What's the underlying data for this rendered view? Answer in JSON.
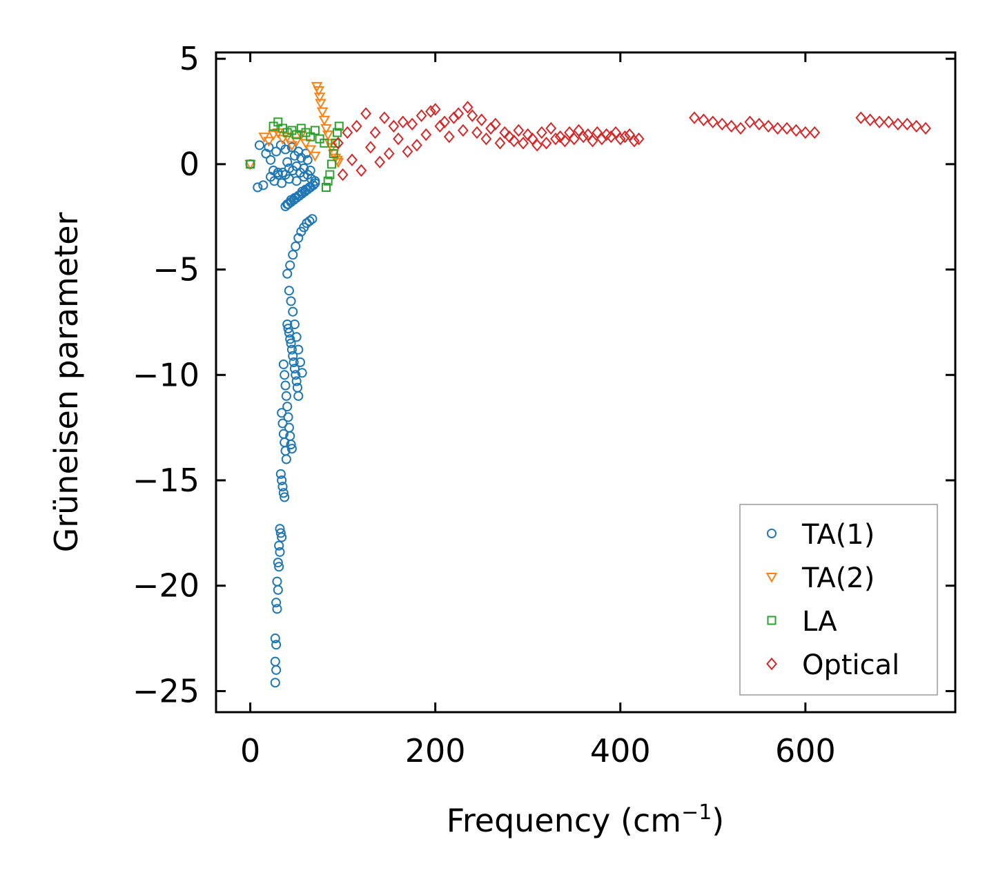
{
  "chart_data": {
    "type": "scatter",
    "title": "",
    "xlabel": "Frequency (cm",
    "xlabel_sup": "−1",
    "xlabel_close": ")",
    "ylabel": "Grüneisen parameter",
    "xlim": [
      -37,
      762
    ],
    "ylim": [
      -26,
      5.3
    ],
    "xticks": [
      0,
      200,
      400,
      600
    ],
    "xtick_labels": [
      "0",
      "200",
      "400",
      "600"
    ],
    "yticks": [
      5,
      0,
      -5,
      -10,
      -15,
      -20,
      -25
    ],
    "ytick_labels": [
      "5",
      "0",
      "−5",
      "−10",
      "−15",
      "−20",
      "−25"
    ],
    "grid": false,
    "legend_position": "lower-right",
    "series": [
      {
        "name": "TA(1)",
        "marker": "circle",
        "color": "#1f77b4",
        "x": [
          0,
          8,
          14,
          17,
          20,
          10,
          22,
          25,
          28,
          30,
          33,
          35,
          38,
          40,
          42,
          45,
          48,
          50,
          52,
          55,
          58,
          60,
          62,
          65,
          22,
          26,
          30,
          34,
          38,
          42,
          46,
          50,
          54,
          58,
          62,
          66,
          70,
          40,
          44,
          48,
          52,
          56,
          60,
          64,
          68,
          38,
          41,
          44,
          47,
          50,
          53,
          56,
          59,
          62,
          65,
          68,
          70,
          40,
          43,
          46,
          49,
          52,
          55,
          58,
          61,
          64,
          67,
          42,
          44,
          46,
          48,
          50,
          52,
          54,
          56,
          40,
          41,
          42,
          43,
          44,
          45,
          46,
          47,
          48,
          49,
          50,
          51,
          52,
          36,
          37,
          38,
          39,
          40,
          41,
          42,
          43,
          44,
          45,
          34,
          35,
          36,
          37,
          38,
          39,
          33,
          34,
          35,
          36,
          37,
          32,
          33,
          34,
          31,
          32,
          30,
          31,
          29,
          30,
          28,
          29,
          27,
          28
        ],
        "y": [
          0,
          -1.1,
          -1.0,
          0.5,
          0.8,
          0.9,
          0.2,
          -0.3,
          0.6,
          -0.5,
          0.9,
          -0.4,
          0.7,
          0.1,
          -0.2,
          0.8,
          0.4,
          -0.1,
          0.6,
          0.3,
          -0.2,
          0.5,
          0.2,
          -0.3,
          -0.6,
          -0.8,
          -0.4,
          -0.9,
          -0.5,
          -0.7,
          -0.3,
          -0.8,
          -0.4,
          -0.6,
          -0.5,
          -0.7,
          -0.8,
          -1.9,
          -1.7,
          -1.6,
          -1.5,
          -1.3,
          -1.2,
          -1.1,
          -1.0,
          -2.0,
          -1.9,
          -1.8,
          -1.7,
          -1.6,
          -1.5,
          -1.4,
          -1.3,
          -1.2,
          -1.1,
          -1.0,
          -0.9,
          -5.2,
          -4.8,
          -4.3,
          -3.9,
          -3.5,
          -3.2,
          -3.0,
          -2.8,
          -2.7,
          -2.6,
          -6.0,
          -6.5,
          -7.0,
          -7.6,
          -8.2,
          -8.8,
          -9.4,
          -9.9,
          -7.6,
          -7.8,
          -8.0,
          -8.3,
          -8.5,
          -8.8,
          -9.1,
          -9.4,
          -9.7,
          -10.0,
          -10.3,
          -10.6,
          -11.0,
          -9.5,
          -10.0,
          -10.5,
          -11.0,
          -11.5,
          -12.0,
          -12.5,
          -12.9,
          -13.3,
          -13.5,
          -11.8,
          -12.3,
          -12.8,
          -13.2,
          -13.6,
          -14.0,
          -14.7,
          -15.0,
          -15.3,
          -15.6,
          -15.8,
          -17.3,
          -17.5,
          -17.7,
          -18.1,
          -18.4,
          -18.9,
          -19.1,
          -19.8,
          -20.2,
          -20.8,
          -21.1,
          -22.5,
          -22.8
        ],
        "tail_x": [
          27,
          28,
          27
        ],
        "tail_y": [
          -23.6,
          -24.0,
          -24.6
        ]
      },
      {
        "name": "TA(2)",
        "marker": "triangle-down",
        "color": "#ff7f0e",
        "x": [
          0,
          15,
          20,
          25,
          30,
          35,
          40,
          45,
          50,
          55,
          60,
          65,
          70,
          72,
          74,
          75,
          76,
          78,
          80,
          82,
          84,
          86,
          88,
          90,
          92,
          94,
          95
        ],
        "y": [
          0,
          1.3,
          1.1,
          1.4,
          1.5,
          1.2,
          1.3,
          0.9,
          1.1,
          1.4,
          1.0,
          0.7,
          0.4,
          3.7,
          3.5,
          3.2,
          2.9,
          2.5,
          2.1,
          1.7,
          1.4,
          1.0,
          0.8,
          0.5,
          0.3,
          0.2,
          0.1
        ]
      },
      {
        "name": "LA",
        "marker": "square",
        "color": "#2ca02c",
        "x": [
          0,
          25,
          30,
          35,
          40,
          45,
          50,
          55,
          60,
          65,
          70,
          75,
          80,
          82,
          84,
          86,
          88,
          90,
          92,
          94,
          96
        ],
        "y": [
          0,
          1.8,
          2.0,
          1.7,
          1.5,
          1.6,
          1.4,
          1.7,
          1.5,
          1.3,
          1.6,
          1.2,
          1.0,
          -1.1,
          -0.8,
          -0.5,
          0.0,
          0.5,
          1.0,
          1.5,
          1.8
        ]
      },
      {
        "name": "Optical",
        "marker": "diamond",
        "color": "#d62728",
        "x": [
          95,
          100,
          105,
          110,
          115,
          120,
          125,
          130,
          135,
          140,
          145,
          150,
          155,
          160,
          165,
          170,
          175,
          180,
          185,
          190,
          195,
          200,
          205,
          210,
          215,
          220,
          225,
          230,
          235,
          240,
          245,
          250,
          255,
          260,
          265,
          270,
          275,
          280,
          285,
          290,
          295,
          300,
          305,
          310,
          315,
          320,
          325,
          330,
          335,
          340,
          345,
          350,
          355,
          360,
          365,
          370,
          375,
          380,
          385,
          390,
          395,
          400,
          405,
          410,
          415,
          420,
          480,
          490,
          500,
          510,
          520,
          530,
          540,
          550,
          560,
          570,
          580,
          590,
          600,
          610,
          660,
          670,
          680,
          690,
          700,
          710,
          720,
          730
        ],
        "y": [
          1.0,
          -0.5,
          1.5,
          0.2,
          1.8,
          -0.3,
          2.4,
          0.8,
          1.5,
          0.1,
          2.2,
          0.5,
          1.8,
          1.2,
          2.0,
          0.6,
          1.9,
          0.9,
          2.3,
          1.4,
          2.5,
          2.6,
          1.8,
          2.0,
          1.3,
          2.2,
          2.4,
          1.6,
          2.7,
          2.3,
          1.5,
          2.1,
          1.2,
          1.7,
          1.9,
          1.0,
          1.5,
          1.3,
          1.1,
          1.6,
          1.0,
          1.4,
          1.2,
          0.9,
          1.5,
          1.0,
          1.7,
          1.2,
          1.3,
          1.1,
          1.5,
          1.2,
          1.6,
          1.3,
          1.4,
          1.1,
          1.5,
          1.2,
          1.4,
          1.3,
          1.5,
          1.2,
          1.3,
          1.4,
          1.1,
          1.2,
          2.2,
          2.1,
          2.0,
          1.9,
          1.8,
          1.7,
          2.0,
          1.9,
          1.8,
          1.7,
          1.7,
          1.6,
          1.5,
          1.5,
          2.2,
          2.1,
          2.0,
          2.0,
          1.9,
          1.9,
          1.8,
          1.7
        ]
      }
    ]
  }
}
